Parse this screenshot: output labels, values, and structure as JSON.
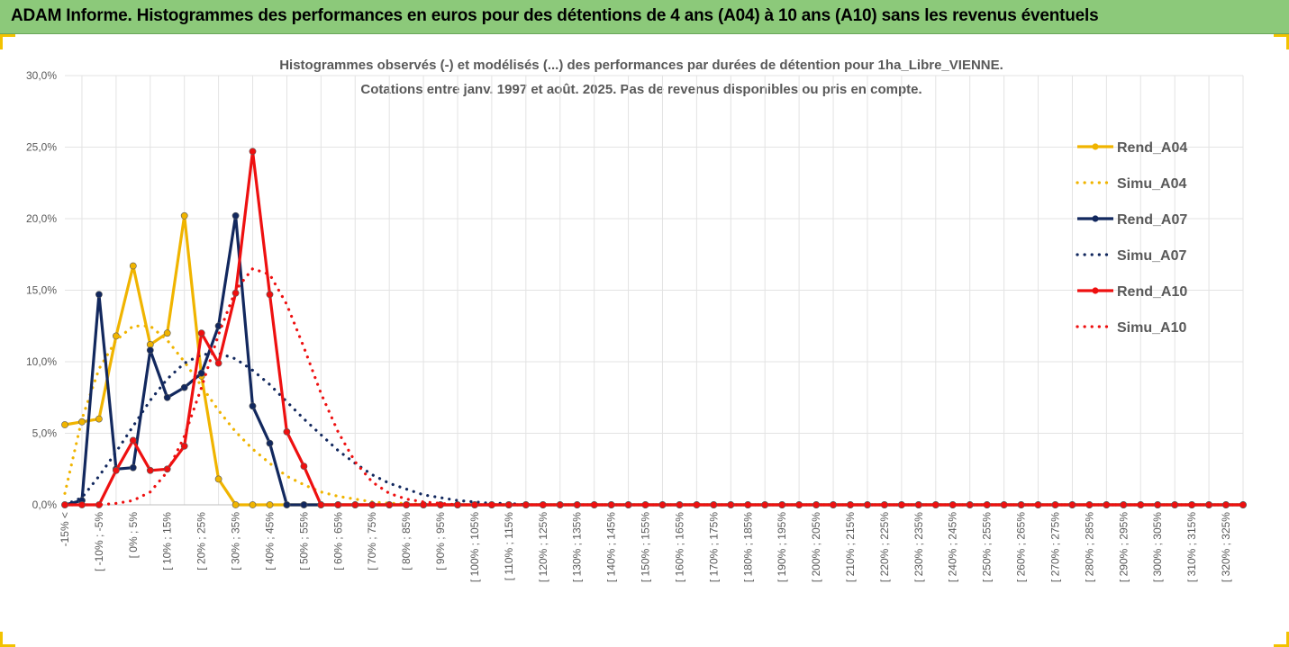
{
  "banner": {
    "title": "ADAM Informe. Histogrammes des performances en euros pour des détentions de 4 ans (A04) à 10 ans (A10) sans les revenus éventuels"
  },
  "chart_data": {
    "type": "line",
    "title_line1": "Histogrammes observés (-) et modélisés (...) des performances par durées de détention pour 1ha_Libre_VIENNE.",
    "title_line2": "Cotations entre janv. 1997 et août. 2025. Pas de revenus disponibles ou pris en compte.",
    "ylim": [
      0,
      30
    ],
    "yticks": [
      "0,0%",
      "5,0%",
      "10,0%",
      "15,0%",
      "20,0%",
      "25,0%",
      "30,0%"
    ],
    "grid": true,
    "legend_position": "right",
    "x_labels": [
      "-15% <",
      "[ -10% ; -5%",
      "[ 0% ; 5%",
      "[ 10% ; 15%",
      "[ 20% ; 25%",
      "[ 30% ; 35%",
      "[ 40% ; 45%",
      "[ 50% ; 55%",
      "[ 60% ; 65%",
      "[ 70% ; 75%",
      "[ 80% ; 85%",
      "[ 90% ; 95%",
      "[ 100% ; 105%",
      "[ 110% ; 115%",
      "[ 120% ; 125%",
      "[ 130% ; 135%",
      "[ 140% ; 145%",
      "[ 150% ; 155%",
      "[ 160% ; 165%",
      "[ 170% ; 175%",
      "[ 180% ; 185%",
      "[ 190% ; 195%",
      "[ 200% ; 205%",
      "[ 210% ; 215%",
      "[ 220% ; 225%",
      "[ 230% ; 235%",
      "[ 240% ; 245%",
      "[ 250% ; 255%",
      "[ 260% ; 265%",
      "[ 270% ; 275%",
      "[ 280% ; 285%",
      "[ 290% ; 295%",
      "[ 300% ; 305%",
      "[ 310% ; 315%",
      "[ 320% ; 325%"
    ],
    "series": [
      {
        "name": "Rend_A04",
        "color": "#f0b400",
        "style": "solid",
        "markers": true,
        "values": [
          5.6,
          5.8,
          6.0,
          11.8,
          16.7,
          11.2,
          12.0,
          20.2,
          9.0,
          1.8,
          0,
          0,
          0,
          0,
          0,
          0,
          0,
          0,
          0,
          0,
          0,
          0,
          0,
          0,
          0,
          0,
          0,
          0,
          0,
          0,
          0,
          0,
          0,
          0,
          0,
          0,
          0,
          0,
          0,
          0,
          0,
          0,
          0,
          0,
          0,
          0,
          0,
          0,
          0,
          0,
          0,
          0,
          0,
          0,
          0,
          0,
          0,
          0,
          0,
          0,
          0,
          0,
          0,
          0,
          0,
          0,
          0,
          0,
          0,
          0
        ]
      },
      {
        "name": "Simu_A04",
        "color": "#f0b400",
        "style": "dotted",
        "markers": false,
        "values": [
          0.8,
          6.0,
          9.5,
          11.5,
          12.5,
          12.5,
          11.5,
          10.0,
          8.3,
          6.6,
          5.1,
          3.9,
          2.9,
          2.0,
          1.4,
          0.9,
          0.6,
          0.4,
          0.2,
          0.1,
          0.1,
          0,
          0,
          0,
          0,
          0,
          0,
          0,
          0,
          0,
          0,
          0,
          0,
          0,
          0,
          0,
          0,
          0,
          0,
          0,
          0,
          0,
          0,
          0,
          0,
          0,
          0,
          0,
          0,
          0,
          0,
          0,
          0,
          0,
          0,
          0,
          0,
          0,
          0,
          0,
          0,
          0,
          0,
          0,
          0,
          0,
          0,
          0,
          0,
          0
        ]
      },
      {
        "name": "Rend_A07",
        "color": "#12285e",
        "style": "solid",
        "markers": true,
        "values": [
          0,
          0.3,
          14.7,
          2.5,
          2.6,
          10.8,
          7.5,
          8.2,
          9.2,
          12.5,
          20.2,
          6.9,
          4.3,
          0,
          0,
          0,
          0,
          0,
          0,
          0,
          0,
          0,
          0,
          0,
          0,
          0,
          0,
          0,
          0,
          0,
          0,
          0,
          0,
          0,
          0,
          0,
          0,
          0,
          0,
          0,
          0,
          0,
          0,
          0,
          0,
          0,
          0,
          0,
          0,
          0,
          0,
          0,
          0,
          0,
          0,
          0,
          0,
          0,
          0,
          0,
          0,
          0,
          0,
          0,
          0,
          0,
          0,
          0,
          0,
          0
        ]
      },
      {
        "name": "Simu_A07",
        "color": "#12285e",
        "style": "dotted",
        "markers": false,
        "values": [
          0,
          0.5,
          2.0,
          3.7,
          5.5,
          7.3,
          8.8,
          9.9,
          10.5,
          10.6,
          10.2,
          9.4,
          8.4,
          7.2,
          6.0,
          4.9,
          3.8,
          2.9,
          2.1,
          1.5,
          1.1,
          0.7,
          0.5,
          0.3,
          0.2,
          0.1,
          0.1,
          0,
          0,
          0,
          0,
          0,
          0,
          0,
          0,
          0,
          0,
          0,
          0,
          0,
          0,
          0,
          0,
          0,
          0,
          0,
          0,
          0,
          0,
          0,
          0,
          0,
          0,
          0,
          0,
          0,
          0,
          0,
          0,
          0,
          0,
          0,
          0,
          0,
          0,
          0,
          0,
          0,
          0,
          0
        ]
      },
      {
        "name": "Rend_A10",
        "color": "#ee1010",
        "style": "solid",
        "markers": true,
        "values": [
          0,
          0,
          0,
          2.4,
          4.5,
          2.4,
          2.5,
          4.1,
          12.0,
          9.9,
          14.8,
          24.7,
          14.7,
          5.1,
          2.7,
          0,
          0,
          0,
          0,
          0,
          0,
          0,
          0,
          0,
          0,
          0,
          0,
          0,
          0,
          0,
          0,
          0,
          0,
          0,
          0,
          0,
          0,
          0,
          0,
          0,
          0,
          0,
          0,
          0,
          0,
          0,
          0,
          0,
          0,
          0,
          0,
          0,
          0,
          0,
          0,
          0,
          0,
          0,
          0,
          0,
          0,
          0,
          0,
          0,
          0,
          0,
          0,
          0,
          0,
          0
        ]
      },
      {
        "name": "Simu_A10",
        "color": "#ee1010",
        "style": "dotted",
        "markers": false,
        "values": [
          0,
          0,
          0,
          0.1,
          0.3,
          0.9,
          2.3,
          4.8,
          8.2,
          11.9,
          15.0,
          16.5,
          16.1,
          14.0,
          11.0,
          7.8,
          5.1,
          3.0,
          1.6,
          0.8,
          0.4,
          0.2,
          0.1,
          0,
          0,
          0,
          0,
          0,
          0,
          0,
          0,
          0,
          0,
          0,
          0,
          0,
          0,
          0,
          0,
          0,
          0,
          0,
          0,
          0,
          0,
          0,
          0,
          0,
          0,
          0,
          0,
          0,
          0,
          0,
          0,
          0,
          0,
          0,
          0,
          0,
          0,
          0,
          0,
          0,
          0,
          0,
          0,
          0,
          0,
          0
        ]
      }
    ]
  }
}
